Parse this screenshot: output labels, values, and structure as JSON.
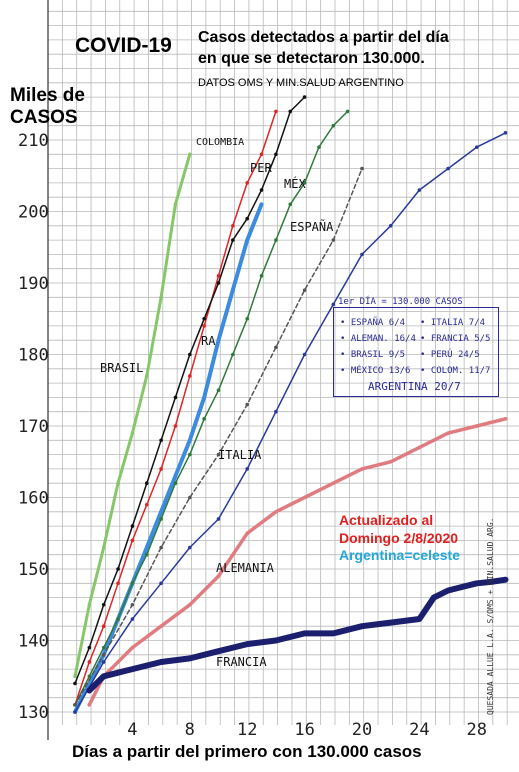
{
  "header": {
    "title": "COVID-19",
    "subtitle_line1": "Casos detectados a partir del día",
    "subtitle_line2": "en que se detectaron 130.000.",
    "source": "DATOS OMS Y MIN.SALUD ARGENTINO"
  },
  "axes": {
    "ylabel_line1": "Miles de",
    "ylabel_line2": "CASOS",
    "xlabel": "Días a partir del primero con 130.000 casos"
  },
  "annotation": {
    "line1": "Actualizado al",
    "line2": "Domingo 2/8/2020",
    "line3": "Argentina=celeste",
    "color_red": "#e02020",
    "color_blue": "#22a7d8"
  },
  "legend": {
    "heading": "1er DÍA = 130.000 CASOS",
    "entries": [
      {
        "country": "ESPAÑA",
        "date": "6/4"
      },
      {
        "country": "ITALIA",
        "date": "7/4"
      },
      {
        "country": "ALEMAN.",
        "date": "16/4"
      },
      {
        "country": "FRANCIA",
        "date": "5/5"
      },
      {
        "country": "BRASIL",
        "date": "9/5"
      },
      {
        "country": "PERÚ",
        "date": "24/5"
      },
      {
        "country": "MÉXICO",
        "date": "13/6"
      },
      {
        "country": "COLOM.",
        "date": "11/7"
      },
      {
        "country": "ARGENTINA",
        "date": "20/7"
      }
    ]
  },
  "credit": "QUESADA ALLUE L.A. S/OMS + MIN.SALUD ARG.",
  "chart_data": {
    "type": "line",
    "title": "COVID-19",
    "xlabel": "Días a partir del primero con 130.000 casos",
    "ylabel": "Miles de CASOS",
    "xlim": [
      0,
      31
    ],
    "ylim": [
      130,
      212
    ],
    "x_ticks": [
      "4",
      "8",
      "12",
      "16",
      "20",
      "24",
      "28"
    ],
    "y_ticks": [
      "130",
      "140",
      "150",
      "160",
      "170",
      "180",
      "190",
      "200",
      "210"
    ],
    "grid": true,
    "series": [
      {
        "name": "BRASIL",
        "color": "#86c76a",
        "x": [
          0,
          1,
          2,
          3,
          4,
          5,
          6,
          7,
          8
        ],
        "values": [
          135,
          145,
          153,
          162,
          169,
          177,
          188,
          201,
          208
        ]
      },
      {
        "name": "COLOMBIA",
        "color": "#e02525",
        "x": [
          0,
          1,
          2,
          3,
          4,
          5,
          6,
          7,
          8,
          9,
          10,
          11,
          12,
          13,
          14
        ],
        "values": [
          131,
          137,
          142,
          148,
          154,
          159,
          164,
          170,
          177,
          184,
          191,
          198,
          204,
          208,
          214
        ]
      },
      {
        "name": "PERÚ",
        "color": "#111111",
        "x": [
          0,
          1,
          2,
          3,
          4,
          5,
          6,
          7,
          8,
          9,
          10,
          11,
          12,
          13,
          14,
          15,
          16
        ],
        "values": [
          134,
          139,
          145,
          150,
          156,
          162,
          168,
          174,
          180,
          185,
          190,
          196,
          199,
          203,
          208,
          214,
          216
        ]
      },
      {
        "name": "ARGENTINA",
        "color": "#3b8bde",
        "x": [
          0,
          1,
          2,
          3,
          4,
          5,
          6,
          7,
          8,
          9,
          10,
          11,
          12,
          13
        ],
        "values": [
          130,
          134,
          138,
          143,
          148,
          153,
          158,
          163,
          168,
          174,
          182,
          189,
          196,
          201
        ]
      },
      {
        "name": "MÉXICO",
        "color": "#2f7a3a",
        "x": [
          0,
          1,
          2,
          3,
          4,
          5,
          6,
          7,
          8,
          9,
          10,
          11,
          12,
          13,
          14,
          15,
          16,
          17,
          18,
          19
        ],
        "values": [
          131,
          135,
          139,
          143,
          148,
          152,
          157,
          162,
          166,
          171,
          175,
          180,
          185,
          191,
          196,
          201,
          204,
          209,
          212,
          214
        ]
      },
      {
        "name": "ESPAÑA",
        "color": "#555555",
        "x": [
          0,
          2,
          4,
          6,
          8,
          10,
          12,
          14,
          16,
          18,
          20
        ],
        "values": [
          131,
          138,
          145,
          153,
          160,
          166,
          173,
          181,
          189,
          196,
          206
        ]
      },
      {
        "name": "ITALIA",
        "color": "#2a3a9c",
        "x": [
          0,
          2,
          4,
          6,
          8,
          10,
          12,
          14,
          16,
          18,
          20,
          22,
          24,
          26,
          28,
          30
        ],
        "values": [
          130,
          137,
          143,
          148,
          153,
          157,
          164,
          172,
          180,
          187,
          194,
          198,
          203,
          206,
          209,
          211
        ]
      },
      {
        "name": "ALEMANIA",
        "color": "#e07b80",
        "x": [
          1,
          2,
          4,
          6,
          8,
          10,
          12,
          14,
          16,
          18,
          20,
          22,
          24,
          26,
          28,
          30
        ],
        "values": [
          131,
          135,
          139,
          142,
          145,
          149,
          155,
          158,
          160,
          162,
          164,
          165,
          167,
          169,
          170,
          171
        ]
      },
      {
        "name": "FRANCIA",
        "color": "#1b1f6e",
        "x": [
          1,
          2,
          3,
          4,
          6,
          8,
          10,
          12,
          14,
          16,
          18,
          20,
          22,
          24,
          25,
          26,
          27,
          28,
          29,
          30
        ],
        "values": [
          133,
          135,
          135.5,
          136,
          137,
          137.5,
          138.5,
          139.5,
          140,
          141,
          141,
          142,
          142.5,
          143,
          146,
          147,
          147.5,
          148,
          148.2,
          148.5
        ]
      }
    ]
  }
}
